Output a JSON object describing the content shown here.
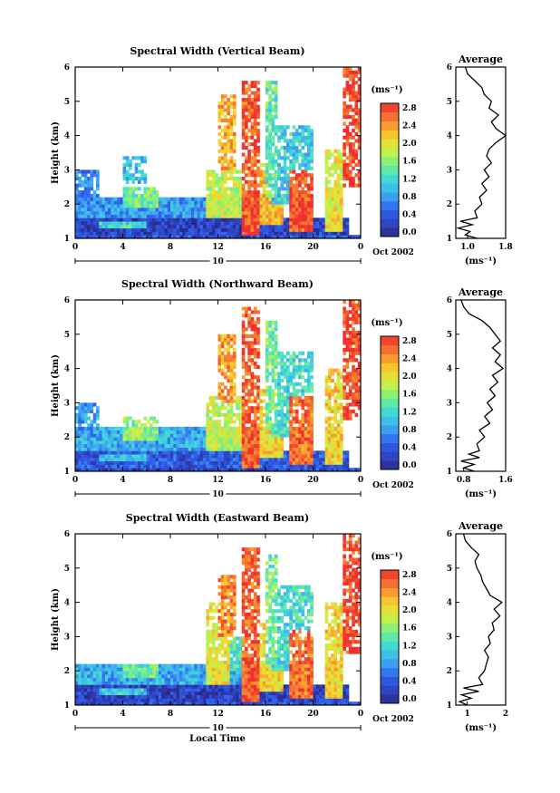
{
  "chart_data": [
    {
      "type": "heatmap",
      "title": "Spectral Width (Vertical Beam)",
      "ylabel": "Height (km)",
      "xlabel": "",
      "xlim": [
        0,
        24
      ],
      "ylim": [
        1,
        6
      ],
      "x_ticks": [
        "0",
        "4",
        "8",
        "12",
        "16",
        "20",
        "0"
      ],
      "y_ticks": [
        "1",
        "2",
        "3",
        "4",
        "5",
        "6"
      ],
      "day_label": "10",
      "date_label": "Oct 2002",
      "colorbar": {
        "unit": "(ms⁻¹)",
        "range": [
          0,
          3.0
        ],
        "tick_labels": [
          "0.0",
          "0.4",
          "0.8",
          "1.2",
          "1.6",
          "2.0",
          "2.4",
          "2.8"
        ]
      },
      "average": {
        "title": "Average",
        "unit": "(ms⁻¹)",
        "xlim": [
          0.75,
          1.8
        ],
        "x_ticks": [
          "1.0",
          "1.8"
        ],
        "profile": [
          [
            1.0,
            1.2
          ],
          [
            1.1,
            0.95
          ],
          [
            1.2,
            1.05
          ],
          [
            1.3,
            0.8
          ],
          [
            1.4,
            1.1
          ],
          [
            1.5,
            0.85
          ],
          [
            1.6,
            1.2
          ],
          [
            1.8,
            1.15
          ],
          [
            2.0,
            1.3
          ],
          [
            2.2,
            1.25
          ],
          [
            2.4,
            1.4
          ],
          [
            2.6,
            1.3
          ],
          [
            2.8,
            1.45
          ],
          [
            3.0,
            1.35
          ],
          [
            3.2,
            1.5
          ],
          [
            3.4,
            1.4
          ],
          [
            3.6,
            1.45
          ],
          [
            3.8,
            1.6
          ],
          [
            4.0,
            1.8
          ],
          [
            4.2,
            1.6
          ],
          [
            4.4,
            1.5
          ],
          [
            4.6,
            1.65
          ],
          [
            4.8,
            1.45
          ],
          [
            5.0,
            1.5
          ],
          [
            5.2,
            1.35
          ],
          [
            5.4,
            1.3
          ],
          [
            5.6,
            1.15
          ],
          [
            5.8,
            1.0
          ],
          [
            6.0,
            0.95
          ]
        ]
      },
      "regions": [
        [
          0,
          24,
          1.0,
          1.15,
          0.5
        ],
        [
          0,
          23,
          1.15,
          1.6,
          0.3
        ],
        [
          2,
          6,
          1.3,
          1.55,
          1.3
        ],
        [
          0,
          14,
          1.6,
          2.2,
          0.9
        ],
        [
          4,
          7,
          1.9,
          2.5,
          1.6
        ],
        [
          11,
          14,
          1.6,
          3.0,
          1.9
        ],
        [
          14,
          15.5,
          1.1,
          5.6,
          2.8
        ],
        [
          15.5,
          17.5,
          1.4,
          3.2,
          2.3
        ],
        [
          16.5,
          20,
          2.0,
          4.3,
          1.2
        ],
        [
          18,
          20,
          1.2,
          3.0,
          2.8
        ],
        [
          21,
          22.5,
          1.2,
          3.6,
          2.1
        ],
        [
          22.5,
          24,
          2.5,
          6.0,
          2.9
        ],
        [
          0,
          2,
          2.0,
          3.0,
          0.8
        ],
        [
          4,
          6,
          2.6,
          3.4,
          1.1
        ],
        [
          12,
          13.5,
          3.0,
          5.2,
          2.4
        ],
        [
          16,
          17,
          2.2,
          5.6,
          1.5
        ]
      ]
    },
    {
      "type": "heatmap",
      "title": "Spectral Width (Northward Beam)",
      "ylabel": "Height (km)",
      "xlabel": "",
      "xlim": [
        0,
        24
      ],
      "ylim": [
        1,
        6
      ],
      "x_ticks": [
        "0",
        "4",
        "8",
        "12",
        "16",
        "20",
        "0"
      ],
      "y_ticks": [
        "1",
        "2",
        "3",
        "4",
        "5",
        "6"
      ],
      "day_label": "10",
      "date_label": "Oct 2002",
      "colorbar": {
        "unit": "(ms⁻¹)",
        "range": [
          0,
          3.0
        ],
        "tick_labels": [
          "0.0",
          "0.4",
          "0.8",
          "1.2",
          "1.6",
          "2.0",
          "2.4",
          "2.8"
        ]
      },
      "average": {
        "title": "Average",
        "unit": "(ms⁻¹)",
        "xlim": [
          0.65,
          1.6
        ],
        "x_ticks": [
          "0.8",
          "1.6"
        ],
        "profile": [
          [
            1.0,
            1.0
          ],
          [
            1.1,
            0.8
          ],
          [
            1.2,
            1.0
          ],
          [
            1.3,
            0.75
          ],
          [
            1.4,
            1.1
          ],
          [
            1.5,
            0.9
          ],
          [
            1.6,
            1.1
          ],
          [
            1.8,
            1.05
          ],
          [
            2.0,
            1.2
          ],
          [
            2.2,
            1.1
          ],
          [
            2.4,
            1.3
          ],
          [
            2.6,
            1.2
          ],
          [
            2.8,
            1.35
          ],
          [
            3.0,
            1.25
          ],
          [
            3.2,
            1.4
          ],
          [
            3.4,
            1.3
          ],
          [
            3.6,
            1.45
          ],
          [
            3.8,
            1.35
          ],
          [
            4.0,
            1.55
          ],
          [
            4.2,
            1.4
          ],
          [
            4.4,
            1.5
          ],
          [
            4.6,
            1.35
          ],
          [
            4.8,
            1.5
          ],
          [
            5.0,
            1.4
          ],
          [
            5.2,
            1.3
          ],
          [
            5.4,
            1.15
          ],
          [
            5.6,
            0.9
          ],
          [
            5.8,
            0.8
          ],
          [
            6.0,
            0.75
          ]
        ]
      },
      "regions": [
        [
          0,
          24,
          1.0,
          1.15,
          0.4
        ],
        [
          0,
          23,
          1.15,
          1.6,
          0.5
        ],
        [
          2,
          6,
          1.3,
          1.55,
          1.2
        ],
        [
          0,
          14,
          1.6,
          2.3,
          1.0
        ],
        [
          4,
          7,
          1.9,
          2.6,
          1.7
        ],
        [
          11,
          14,
          1.6,
          3.2,
          1.9
        ],
        [
          14,
          15.5,
          1.1,
          5.8,
          2.8
        ],
        [
          15.5,
          17.5,
          1.4,
          3.4,
          2.2
        ],
        [
          16.5,
          20,
          2.0,
          4.5,
          1.3
        ],
        [
          18,
          20,
          1.2,
          3.2,
          2.7
        ],
        [
          21,
          22.5,
          1.2,
          4.0,
          2.2
        ],
        [
          22.5,
          24,
          2.5,
          6.0,
          2.9
        ],
        [
          0,
          2,
          2.0,
          3.0,
          0.9
        ],
        [
          12,
          13.5,
          3.0,
          5.0,
          2.5
        ],
        [
          16,
          17,
          2.2,
          5.4,
          1.6
        ]
      ]
    },
    {
      "type": "heatmap",
      "title": "Spectral Width (Eastward Beam)",
      "ylabel": "Height (km)",
      "xlabel": "Local Time",
      "xlim": [
        0,
        24
      ],
      "ylim": [
        1,
        6
      ],
      "x_ticks": [
        "0",
        "4",
        "8",
        "12",
        "16",
        "20",
        "0"
      ],
      "y_ticks": [
        "1",
        "2",
        "3",
        "4",
        "5",
        "6"
      ],
      "day_label": "10",
      "date_label": "Oct 2002",
      "colorbar": {
        "unit": "(ms⁻¹)",
        "range": [
          0,
          3.0
        ],
        "tick_labels": [
          "0.0",
          "0.4",
          "0.8",
          "1.2",
          "1.6",
          "2.0",
          "2.4",
          "2.8"
        ]
      },
      "average": {
        "title": "Average",
        "unit": "(ms⁻¹)",
        "xlim": [
          0.7,
          2.0
        ],
        "x_ticks": [
          "1",
          "2"
        ],
        "profile": [
          [
            1.0,
            1.0
          ],
          [
            1.1,
            0.8
          ],
          [
            1.2,
            1.1
          ],
          [
            1.3,
            0.85
          ],
          [
            1.4,
            1.3
          ],
          [
            1.5,
            0.9
          ],
          [
            1.6,
            1.4
          ],
          [
            1.8,
            1.3
          ],
          [
            2.0,
            1.45
          ],
          [
            2.2,
            1.5
          ],
          [
            2.4,
            1.55
          ],
          [
            2.6,
            1.45
          ],
          [
            2.8,
            1.6
          ],
          [
            3.0,
            1.55
          ],
          [
            3.2,
            1.7
          ],
          [
            3.4,
            1.65
          ],
          [
            3.6,
            1.85
          ],
          [
            3.8,
            1.7
          ],
          [
            4.0,
            1.9
          ],
          [
            4.2,
            1.6
          ],
          [
            4.4,
            1.5
          ],
          [
            4.6,
            1.4
          ],
          [
            4.8,
            1.35
          ],
          [
            5.0,
            1.25
          ],
          [
            5.2,
            1.2
          ],
          [
            5.4,
            1.3
          ],
          [
            5.6,
            1.1
          ],
          [
            5.8,
            0.95
          ],
          [
            6.0,
            0.9
          ]
        ]
      },
      "regions": [
        [
          0,
          24,
          1.0,
          1.15,
          0.4
        ],
        [
          0,
          23,
          1.15,
          1.6,
          0.3
        ],
        [
          2,
          6,
          1.3,
          1.55,
          1.2
        ],
        [
          0,
          14,
          1.6,
          2.2,
          1.0
        ],
        [
          4,
          7,
          1.8,
          2.2,
          1.5
        ],
        [
          11,
          13,
          1.6,
          4.0,
          2.1
        ],
        [
          13,
          14,
          2.0,
          3.0,
          1.4
        ],
        [
          14,
          15.5,
          1.1,
          5.6,
          2.8
        ],
        [
          15.5,
          17.5,
          1.4,
          3.4,
          2.2
        ],
        [
          16.5,
          20,
          2.0,
          4.5,
          1.3
        ],
        [
          18,
          20,
          1.2,
          3.2,
          2.7
        ],
        [
          21,
          22.5,
          1.2,
          4.0,
          2.2
        ],
        [
          22.5,
          24,
          2.5,
          6.0,
          2.9
        ],
        [
          12,
          13.5,
          3.0,
          4.8,
          2.6
        ],
        [
          16,
          17,
          2.2,
          5.4,
          1.6
        ]
      ]
    }
  ]
}
